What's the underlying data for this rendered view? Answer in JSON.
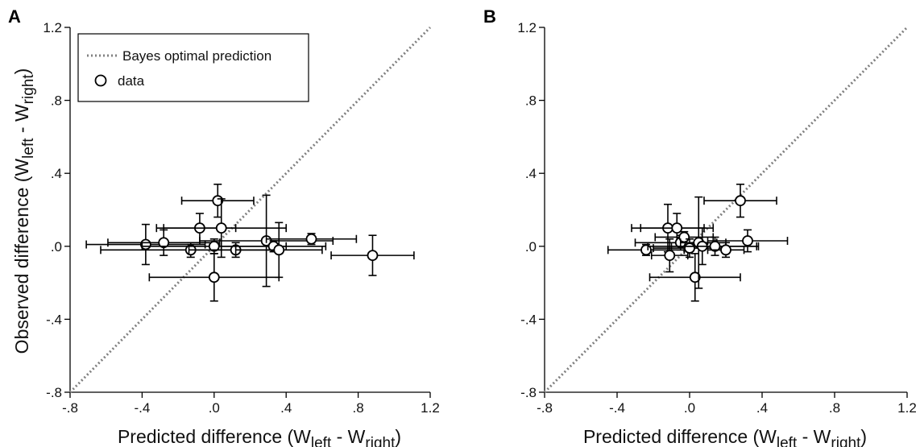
{
  "chart_data": [
    {
      "type": "scatter",
      "panel": "A",
      "xlabel": {
        "main": "Predicted difference (W",
        "sub1": "left",
        "mid": " - W",
        "sub2": "right",
        "end": ")"
      },
      "ylabel": {
        "main": "Observed difference (W",
        "sub1": "left",
        "mid": " - W",
        "sub2": "right",
        "end": ")"
      },
      "xlim": [
        -0.8,
        1.2
      ],
      "ylim": [
        -0.8,
        1.2
      ],
      "xticks": [
        -0.8,
        -0.4,
        0.0,
        0.4,
        0.8,
        1.2
      ],
      "yticks": [
        -0.8,
        -0.4,
        0.0,
        0.4,
        0.8,
        1.2
      ],
      "xtick_labels": [
        "-.8",
        "-.4",
        ".0",
        ".4",
        ".8",
        "1.2"
      ],
      "ytick_labels": [
        "-.8",
        "-.4",
        ".0",
        ".4",
        ".8",
        "1.2"
      ],
      "reference_line": {
        "name": "Bayes optimal prediction",
        "from": [
          -0.8,
          -0.8
        ],
        "to": [
          1.2,
          1.2
        ],
        "style": "dotted",
        "color": "#808080"
      },
      "legend": {
        "placement": "top-left",
        "entries": [
          {
            "label": "Bayes optimal prediction",
            "kind": "dotted-line"
          },
          {
            "label": "data",
            "kind": "open-circle"
          }
        ]
      },
      "points": [
        {
          "x": -0.38,
          "y": 0.01,
          "xerr": 0.33,
          "yerr": 0.11
        },
        {
          "x": -0.28,
          "y": 0.02,
          "xerr": 0.31,
          "yerr": 0.07
        },
        {
          "x": -0.13,
          "y": -0.02,
          "xerr": 0.5,
          "yerr": 0.04
        },
        {
          "x": -0.08,
          "y": 0.1,
          "xerr": 0.2,
          "yerr": 0.08
        },
        {
          "x": 0.0,
          "y": 0.0,
          "xerr": 0.4,
          "yerr": 0.04
        },
        {
          "x": 0.0,
          "y": -0.17,
          "xerr": 0.36,
          "yerr": 0.13
        },
        {
          "x": 0.02,
          "y": 0.25,
          "xerr": 0.2,
          "yerr": 0.09
        },
        {
          "x": 0.04,
          "y": 0.1,
          "xerr": 0.36,
          "yerr": 0.16
        },
        {
          "x": 0.12,
          "y": -0.02,
          "xerr": 0.26,
          "yerr": 0.04
        },
        {
          "x": 0.29,
          "y": 0.03,
          "xerr": 0.37,
          "yerr": 0.25
        },
        {
          "x": 0.33,
          "y": 0.0,
          "xerr": 0.29,
          "yerr": 0.03
        },
        {
          "x": 0.36,
          "y": -0.02,
          "xerr": 0.24,
          "yerr": 0.15
        },
        {
          "x": 0.54,
          "y": 0.04,
          "xerr": 0.25,
          "yerr": 0.03
        },
        {
          "x": 0.88,
          "y": -0.05,
          "xerr": 0.23,
          "yerr": 0.11
        }
      ]
    },
    {
      "type": "scatter",
      "panel": "B",
      "xlabel": {
        "main": "Predicted difference (W",
        "sub1": "left",
        "mid": " - W",
        "sub2": "right",
        "end": ")"
      },
      "ylabel": {
        "main": "",
        "sub1": "",
        "mid": "",
        "sub2": "",
        "end": ""
      },
      "xlim": [
        -0.8,
        1.2
      ],
      "ylim": [
        -0.8,
        1.2
      ],
      "xticks": [
        -0.8,
        -0.4,
        0.0,
        0.4,
        0.8,
        1.2
      ],
      "yticks": [
        -0.8,
        -0.4,
        0.0,
        0.4,
        0.8,
        1.2
      ],
      "xtick_labels": [
        "-.8",
        "-.4",
        ".0",
        ".4",
        ".8",
        "1.2"
      ],
      "ytick_labels": [
        "-.8",
        "-.4",
        ".0",
        ".4",
        ".8",
        "1.2"
      ],
      "reference_line": {
        "name": "Bayes optimal prediction",
        "from": [
          -0.8,
          -0.8
        ],
        "to": [
          1.2,
          1.2
        ],
        "style": "dotted",
        "color": "#808080"
      },
      "legend": null,
      "points": [
        {
          "x": -0.24,
          "y": -0.02,
          "xerr": 0.21,
          "yerr": 0.03
        },
        {
          "x": -0.12,
          "y": 0.1,
          "xerr": 0.2,
          "yerr": 0.13
        },
        {
          "x": -0.11,
          "y": -0.05,
          "xerr": 0.1,
          "yerr": 0.09
        },
        {
          "x": -0.07,
          "y": 0.1,
          "xerr": 0.2,
          "yerr": 0.08
        },
        {
          "x": -0.05,
          "y": 0.02,
          "xerr": 0.25,
          "yerr": 0.04
        },
        {
          "x": -0.03,
          "y": 0.05,
          "xerr": 0.16,
          "yerr": 0.03
        },
        {
          "x": 0.0,
          "y": -0.01,
          "xerr": 0.2,
          "yerr": 0.05
        },
        {
          "x": 0.03,
          "y": -0.17,
          "xerr": 0.25,
          "yerr": 0.13
        },
        {
          "x": 0.05,
          "y": 0.02,
          "xerr": 0.1,
          "yerr": 0.25
        },
        {
          "x": 0.07,
          "y": 0.0,
          "xerr": 0.3,
          "yerr": 0.1
        },
        {
          "x": 0.14,
          "y": 0.0,
          "xerr": 0.24,
          "yerr": 0.05
        },
        {
          "x": 0.2,
          "y": -0.02,
          "xerr": 0.1,
          "yerr": 0.04
        },
        {
          "x": 0.28,
          "y": 0.25,
          "xerr": 0.2,
          "yerr": 0.09
        },
        {
          "x": 0.32,
          "y": 0.03,
          "xerr": 0.22,
          "yerr": 0.06
        }
      ]
    }
  ]
}
